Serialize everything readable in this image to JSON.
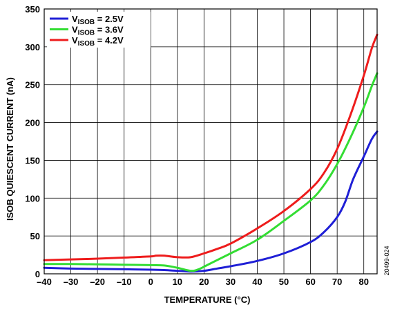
{
  "chart_data": {
    "type": "line",
    "xlabel": "TEMPERATURE (°C)",
    "ylabel": "ISOB QUIESCENT CURRENT (nA)",
    "xlim": [
      -40,
      85
    ],
    "ylim": [
      0,
      350
    ],
    "x_ticks": [
      -40,
      -30,
      -20,
      -10,
      0,
      10,
      20,
      30,
      40,
      50,
      60,
      70,
      80
    ],
    "x_tick_labels": [
      "–40",
      "–30",
      "–20",
      "–10",
      "0",
      "10",
      "20",
      "30",
      "40",
      "50",
      "60",
      "70",
      "80"
    ],
    "y_ticks": [
      0,
      50,
      100,
      150,
      200,
      250,
      300,
      350
    ],
    "y_tick_labels": [
      "0",
      "50",
      "100",
      "150",
      "200",
      "250",
      "300",
      "350"
    ],
    "grid": true,
    "legend_position": "top-left",
    "series": [
      {
        "name_main": "V",
        "name_sub": "ISOB",
        "name_rest": " = 2.5V",
        "color": "#1f1fd6",
        "points": [
          [
            -40,
            8
          ],
          [
            -30,
            7
          ],
          [
            -20,
            6.5
          ],
          [
            -10,
            6
          ],
          [
            0,
            5.5
          ],
          [
            5,
            5
          ],
          [
            10,
            4
          ],
          [
            15,
            3
          ],
          [
            20,
            4
          ],
          [
            25,
            7
          ],
          [
            30,
            10
          ],
          [
            40,
            17
          ],
          [
            50,
            27
          ],
          [
            60,
            42
          ],
          [
            65,
            55
          ],
          [
            70,
            75
          ],
          [
            73,
            95
          ],
          [
            76,
            125
          ],
          [
            80,
            155
          ],
          [
            83,
            178
          ],
          [
            85,
            188
          ]
        ]
      },
      {
        "name_main": "V",
        "name_sub": "ISOB",
        "name_rest": " = 3.6V",
        "color": "#33dd33",
        "points": [
          [
            -40,
            13
          ],
          [
            -30,
            13
          ],
          [
            -20,
            12.5
          ],
          [
            -10,
            12
          ],
          [
            0,
            11.5
          ],
          [
            5,
            11
          ],
          [
            10,
            8
          ],
          [
            15,
            4
          ],
          [
            18,
            6
          ],
          [
            22,
            13
          ],
          [
            30,
            27
          ],
          [
            40,
            45
          ],
          [
            50,
            70
          ],
          [
            60,
            97
          ],
          [
            65,
            117
          ],
          [
            70,
            145
          ],
          [
            75,
            180
          ],
          [
            80,
            220
          ],
          [
            83,
            248
          ],
          [
            85,
            265
          ]
        ]
      },
      {
        "name_main": "V",
        "name_sub": "ISOB",
        "name_rest": " = 4.2V",
        "color": "#ee1c1c",
        "points": [
          [
            -40,
            18
          ],
          [
            -30,
            19
          ],
          [
            -20,
            20
          ],
          [
            -10,
            21.5
          ],
          [
            0,
            23
          ],
          [
            2,
            24
          ],
          [
            5,
            24
          ],
          [
            10,
            22
          ],
          [
            15,
            22
          ],
          [
            20,
            27
          ],
          [
            25,
            33
          ],
          [
            30,
            40
          ],
          [
            40,
            60
          ],
          [
            50,
            83
          ],
          [
            60,
            112
          ],
          [
            65,
            133
          ],
          [
            70,
            165
          ],
          [
            75,
            210
          ],
          [
            80,
            262
          ],
          [
            83,
            298
          ],
          [
            85,
            316
          ]
        ]
      }
    ]
  },
  "figure_id": "20499-024"
}
